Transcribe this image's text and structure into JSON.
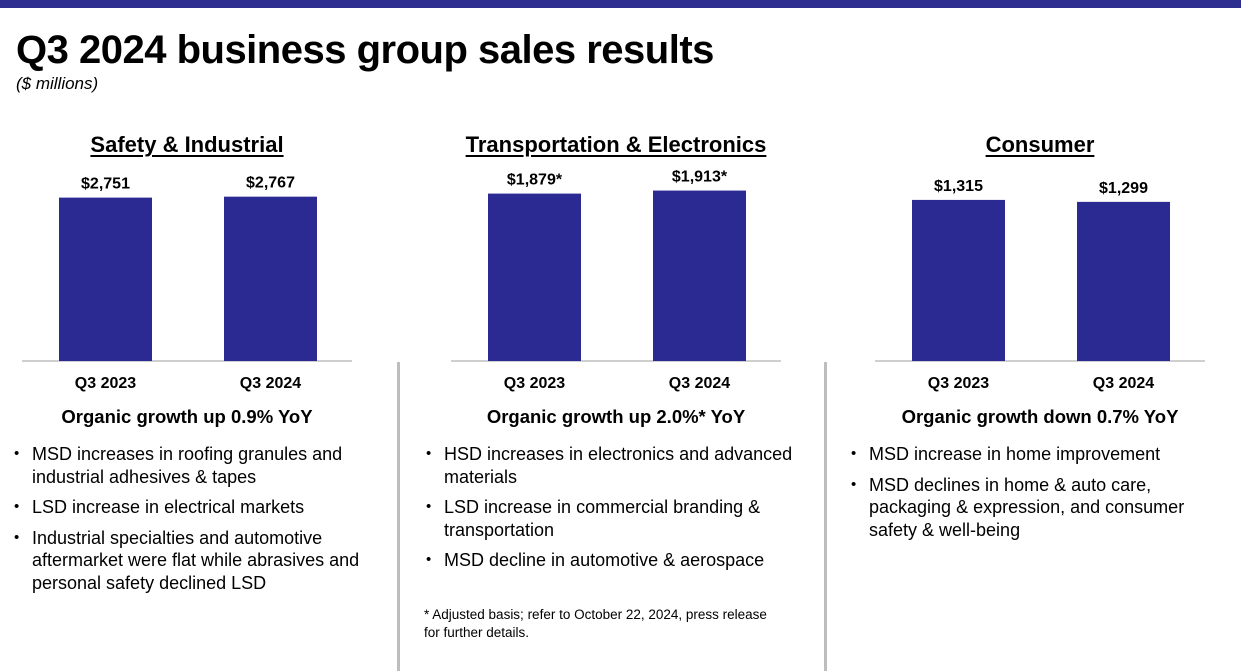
{
  "header": {
    "title": "Q3 2024 business group sales results",
    "subtitle": "($ millions)"
  },
  "colors": {
    "bar": "#2b2a93",
    "accent_bar": "#2d2e8f"
  },
  "panels": [
    {
      "title": "Safety & Industrial",
      "growth": "Organic growth up 0.9% YoY",
      "bullets": [
        "MSD increases in roofing granules and industrial adhesives & tapes",
        "LSD increase in electrical markets",
        "Industrial specialties and automotive aftermarket were flat while abrasives and personal safety declined LSD"
      ]
    },
    {
      "title": "Transportation & Electronics",
      "growth": "Organic growth up 2.0%* YoY",
      "bullets": [
        "HSD increases in electronics and advanced materials",
        "LSD increase in commercial branding & transportation",
        "MSD decline in automotive & aerospace"
      ]
    },
    {
      "title": "Consumer",
      "growth": "Organic growth down 0.7% YoY",
      "bullets": [
        "MSD increase in home improvement",
        "MSD declines in home & auto care, packaging & expression, and consumer safety & well-being"
      ]
    }
  ],
  "footnote": "* Adjusted basis; refer to October 22, 2024, press release\nfor further details.",
  "chart_data": [
    {
      "type": "bar",
      "title": "Safety & Industrial",
      "categories": [
        "Q3 2023",
        "Q3 2024"
      ],
      "values": [
        2751,
        2767
      ],
      "value_labels": [
        "$2,751",
        "$2,767"
      ],
      "ylabel": "$ millions",
      "ylim": [
        0,
        3300
      ]
    },
    {
      "type": "bar",
      "title": "Transportation & Electronics",
      "categories": [
        "Q3 2023",
        "Q3 2024"
      ],
      "values": [
        1879,
        1913
      ],
      "value_labels": [
        "$1,879*",
        "$1,913*"
      ],
      "ylabel": "$ millions",
      "ylim": [
        0,
        2200
      ]
    },
    {
      "type": "bar",
      "title": "Consumer",
      "categories": [
        "Q3 2023",
        "Q3 2024"
      ],
      "values": [
        1315,
        1299
      ],
      "value_labels": [
        "$1,315",
        "$1,299"
      ],
      "ylabel": "$ millions",
      "ylim": [
        0,
        1600
      ]
    }
  ]
}
